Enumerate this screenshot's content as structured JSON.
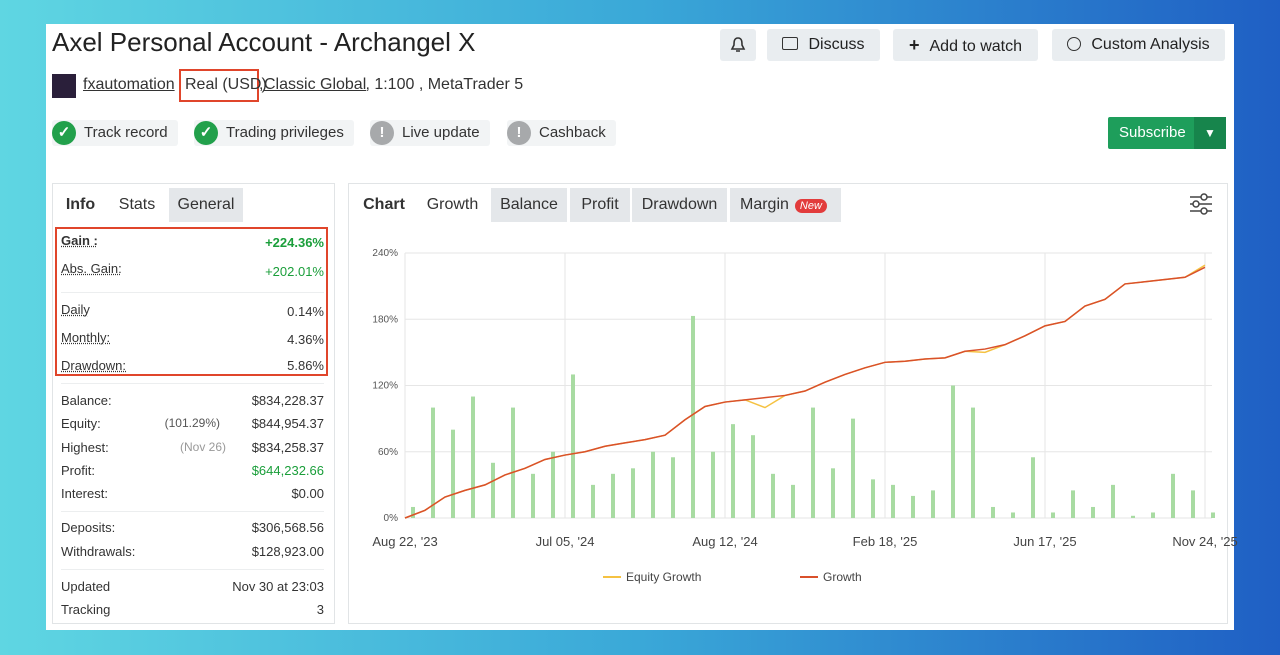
{
  "header": {
    "title": "Axel Personal Account - Archangel X",
    "user": "fxautomation",
    "account_type": "Real (USD)",
    "separator": ",",
    "broker": "Classic Global",
    "details": " , 1:100 , MetaTrader 5",
    "buttons": [
      "Discuss",
      "Add to watch",
      "Custom Analysis"
    ],
    "subscribe": "Subscribe"
  },
  "badges": [
    {
      "label": "Track record",
      "status": "ok"
    },
    {
      "label": "Trading privileges",
      "status": "ok"
    },
    {
      "label": "Live update",
      "status": "warn"
    },
    {
      "label": "Cashback",
      "status": "warn"
    }
  ],
  "side_tabs": [
    "Info",
    "Stats",
    "General"
  ],
  "stats": [
    {
      "label": "Gain :",
      "value": "+224.36%"
    },
    {
      "label": "Abs. Gain:",
      "value": "+202.01%"
    },
    {
      "label": "Daily",
      "value": "0.14%"
    },
    {
      "label": "Monthly:",
      "value": "4.36%"
    },
    {
      "label": "Drawdown:",
      "value": "5.86%"
    },
    {
      "label": "Balance:",
      "value": "$834,228.37"
    },
    {
      "label": "Equity:",
      "note": "(101.29%)",
      "value": "$844,954.37"
    },
    {
      "label": "Highest:",
      "note": "(Nov 26)",
      "value": "$834,258.37"
    },
    {
      "label": "Profit:",
      "value": "$644,232.66"
    },
    {
      "label": "Interest:",
      "value": "$0.00"
    },
    {
      "label": "Deposits:",
      "value": "$306,568.56"
    },
    {
      "label": "Withdrawals:",
      "value": "$128,923.00"
    },
    {
      "label": "Updated",
      "value": "Nov 30 at 23:03"
    },
    {
      "label": "Tracking",
      "value": "3"
    }
  ],
  "chart_tabs": [
    "Chart",
    "Growth",
    "Balance",
    "Profit",
    "Drawdown",
    "Margin"
  ],
  "new_badge": "New",
  "chart_data": {
    "type": "line",
    "xlim": [
      0,
      40
    ],
    "xticks": [
      {
        "value": 0,
        "label": "Aug 22, '23"
      },
      {
        "value": 8,
        "label": "Jul 05, '24"
      },
      {
        "value": 16,
        "label": "Aug 12, '24"
      },
      {
        "value": 24,
        "label": "Feb 18, '25"
      },
      {
        "value": 32,
        "label": "Jun 17, '25"
      },
      {
        "value": 40,
        "label": "Nov 24, '25"
      }
    ],
    "ylim": [
      0,
      240
    ],
    "yticks": [
      {
        "value": 0,
        "label": "0%"
      },
      {
        "value": 60,
        "label": "60%"
      },
      {
        "value": 120,
        "label": "120%"
      },
      {
        "value": 180,
        "label": "180%"
      },
      {
        "value": 240,
        "label": "240%"
      }
    ],
    "grid": true,
    "bars": {
      "color": "#a8dba2",
      "values": [
        10,
        100,
        80,
        110,
        50,
        100,
        40,
        60,
        130,
        30,
        40,
        45,
        60,
        55,
        183,
        60,
        85,
        75,
        40,
        30,
        100,
        45,
        90,
        35,
        30,
        20,
        25,
        120,
        100,
        10,
        5,
        55,
        5,
        25,
        10,
        30,
        2,
        5,
        40,
        25,
        5
      ]
    },
    "series": [
      {
        "name": "Equity Growth",
        "color": "#f5c242",
        "values": [
          0,
          7,
          19,
          25,
          30,
          39,
          45,
          53,
          57,
          60,
          65,
          68,
          71,
          75,
          89,
          101,
          105,
          107,
          100,
          111,
          115,
          123,
          130,
          136,
          141,
          142,
          144,
          145,
          151,
          150,
          157,
          165,
          174,
          178,
          192,
          198,
          212,
          214,
          216,
          218,
          229
        ]
      },
      {
        "name": "Growth",
        "color": "#d9502b",
        "values": [
          0,
          7,
          19,
          25,
          30,
          39,
          45,
          53,
          57,
          60,
          65,
          68,
          71,
          75,
          89,
          101,
          105,
          107,
          109,
          111,
          115,
          123,
          130,
          136,
          141,
          142,
          144,
          145,
          151,
          153,
          157,
          165,
          174,
          178,
          192,
          198,
          212,
          214,
          216,
          218,
          227
        ]
      }
    ]
  }
}
